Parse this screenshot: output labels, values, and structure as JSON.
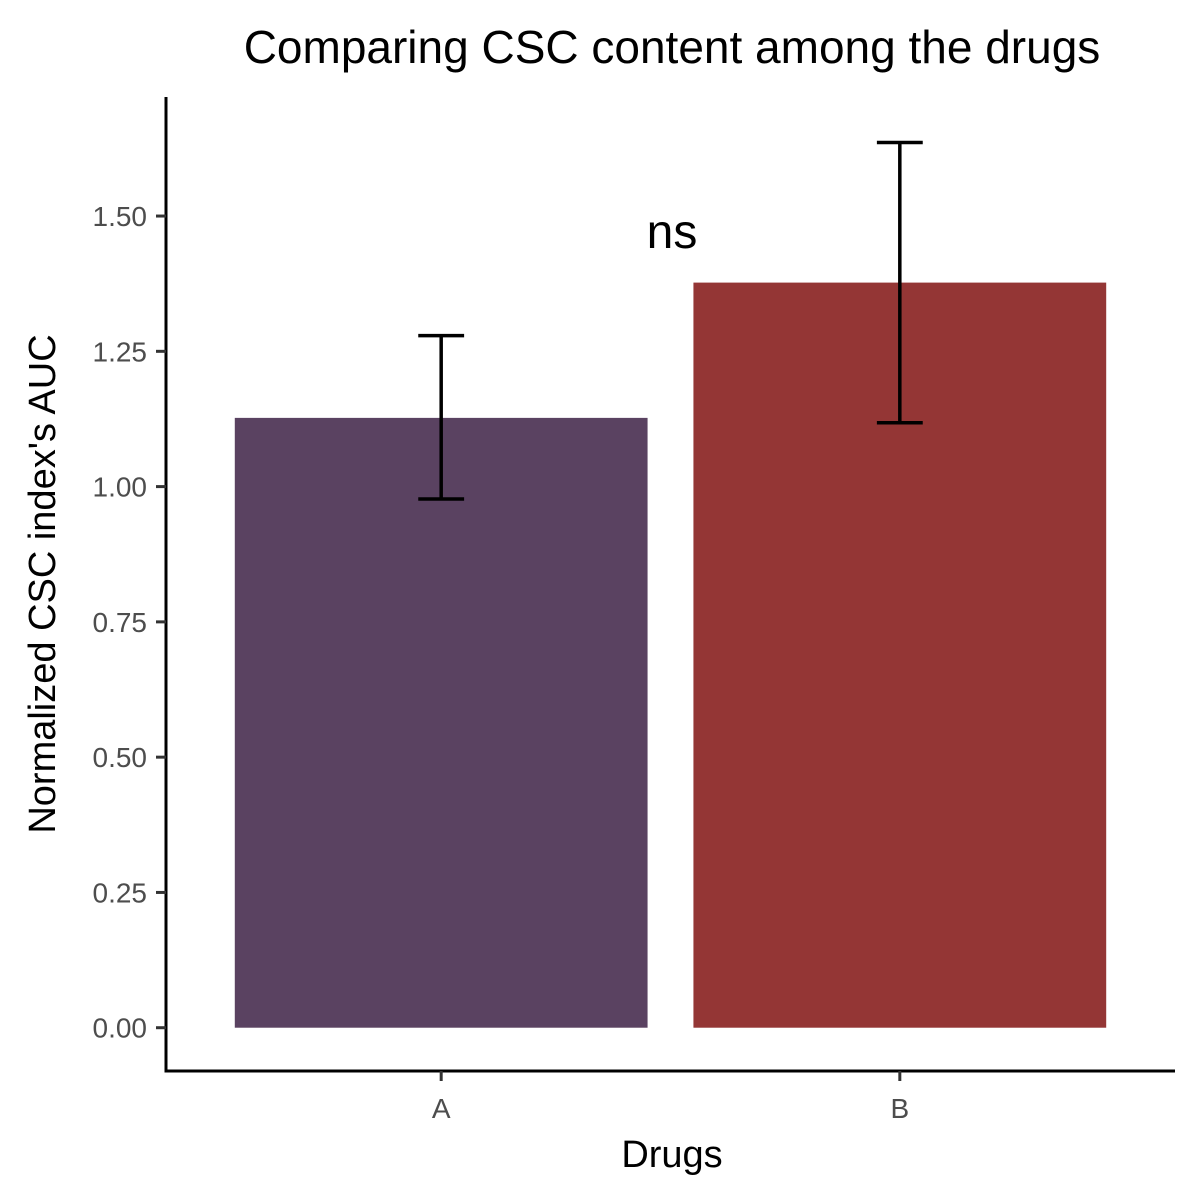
{
  "chart_data": {
    "type": "bar",
    "title": "Comparing CSC content among the drugs",
    "xlabel": "Drugs",
    "ylabel": "Normalized CSC index's AUC",
    "categories": [
      "A",
      "B"
    ],
    "values": [
      1.127,
      1.377
    ],
    "error_low": [
      0.977,
      1.118
    ],
    "error_high": [
      1.279,
      1.636
    ],
    "colors": [
      "#5a4261",
      "#943635"
    ],
    "yticks": [
      0.0,
      0.25,
      0.5,
      0.75,
      1.0,
      1.25,
      1.5
    ],
    "ytick_labels": [
      "0.00",
      "0.25",
      "0.50",
      "0.75",
      "1.00",
      "1.25",
      "1.50"
    ],
    "ylim": [
      -0.08,
      1.72
    ],
    "grid": false,
    "annotation": "ns"
  }
}
